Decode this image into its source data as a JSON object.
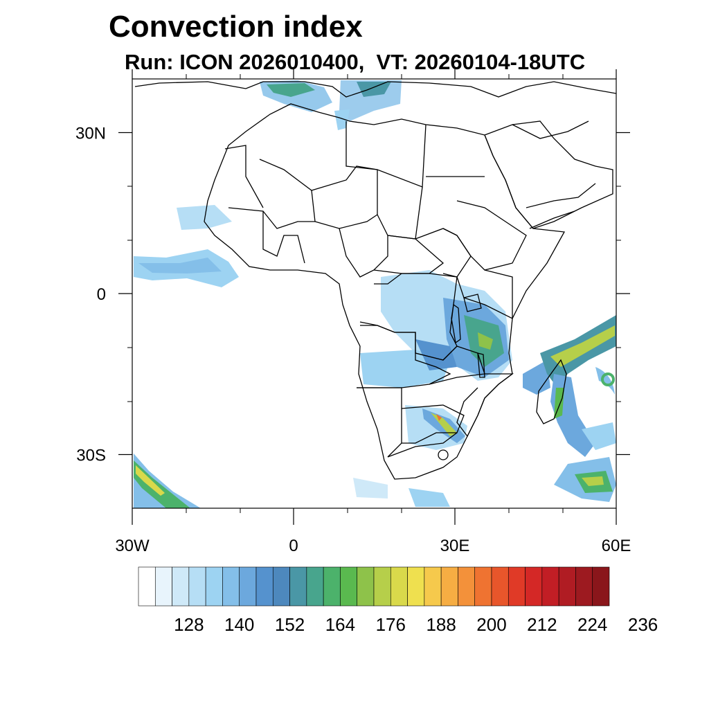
{
  "title": "Convection index",
  "subtitle": "Run: ICON 2026010400,  VT: 20260104-18UTC",
  "map": {
    "region": "Africa",
    "lon_range": [
      -30,
      60
    ],
    "lat_range": [
      -40,
      40
    ],
    "x_ticks": [
      {
        "lon": -30,
        "label": "30W"
      },
      {
        "lon": 0,
        "label": "0"
      },
      {
        "lon": 30,
        "label": "30E"
      },
      {
        "lon": 60,
        "label": "60E"
      }
    ],
    "y_ticks": [
      {
        "lat": 30,
        "label": "30N"
      },
      {
        "lat": 0,
        "label": "0"
      },
      {
        "lat": -30,
        "label": "30S"
      }
    ]
  },
  "colorbar": {
    "colors": [
      "#ffffff",
      "#e8f4fc",
      "#cfe9f8",
      "#b6def5",
      "#9dd3f2",
      "#84bfe9",
      "#6ca8dd",
      "#5592ce",
      "#4d88bd",
      "#4a97a6",
      "#48a58d",
      "#4cb26b",
      "#5ab94f",
      "#8ec24a",
      "#b6cf4a",
      "#d9d94b",
      "#efe04f",
      "#f6c94c",
      "#f6ad43",
      "#f3913a",
      "#ef7331",
      "#e8562b",
      "#e03a27",
      "#d42826",
      "#c21e25",
      "#b01c23",
      "#9d1a20",
      "#8a161b"
    ],
    "labels": [
      "128",
      "140",
      "152",
      "164",
      "176",
      "188",
      "200",
      "212",
      "224",
      "236"
    ]
  }
}
